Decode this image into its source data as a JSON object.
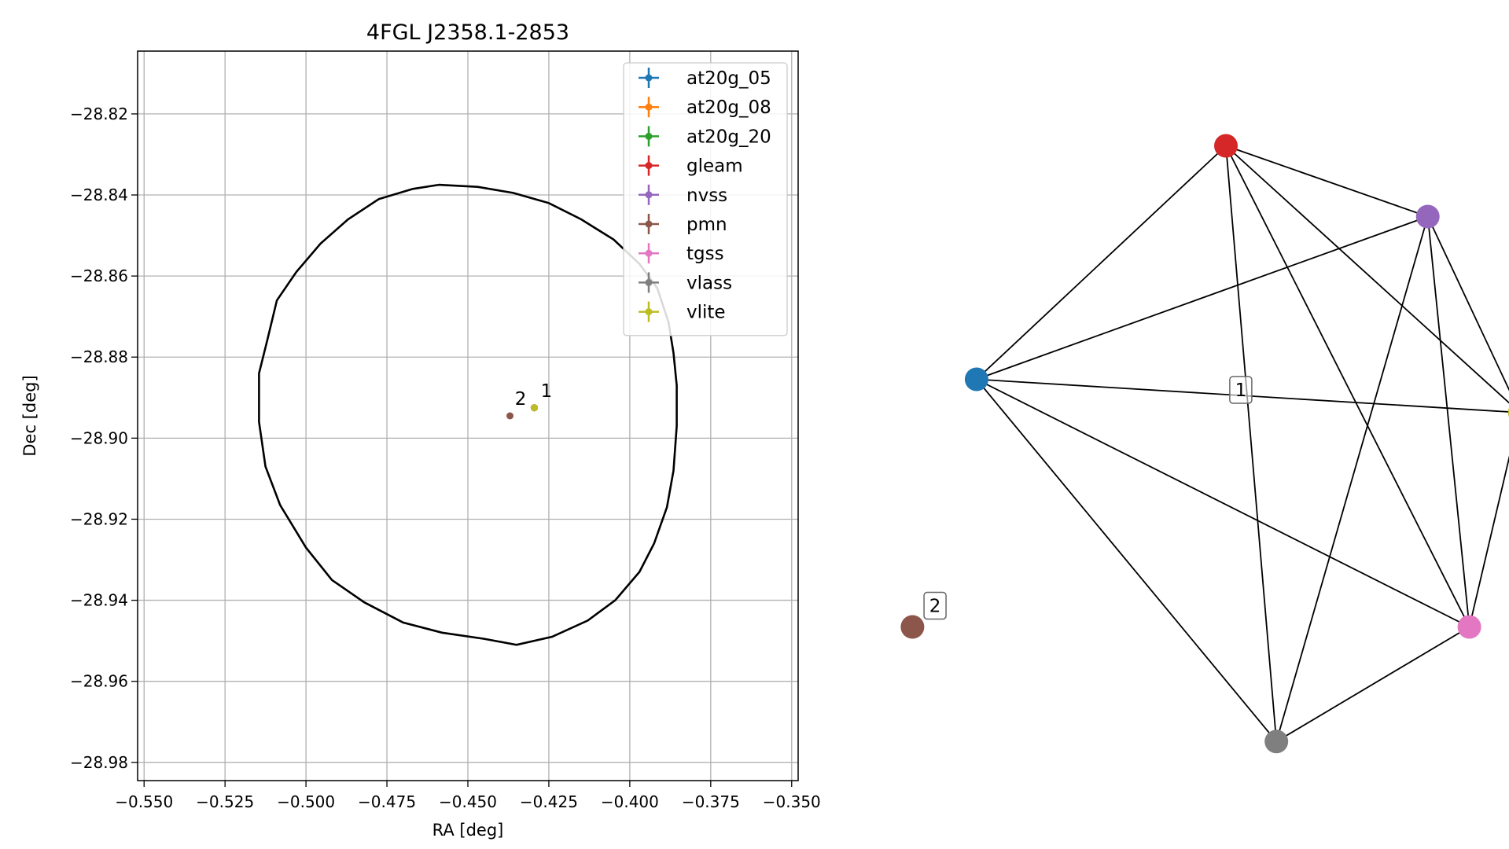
{
  "chart_data": [
    {
      "type": "scatter",
      "title": "4FGL J2358.1-2853",
      "xlabel": "RA [deg]",
      "ylabel": "Dec [deg]",
      "xlim": [
        -0.552,
        -0.348
      ],
      "ylim": [
        -28.9845,
        -28.8045
      ],
      "xticks": [
        -0.55,
        -0.525,
        -0.5,
        -0.475,
        -0.45,
        -0.425,
        -0.4,
        -0.375,
        -0.35
      ],
      "xtick_labels": [
        "−0.550",
        "−0.525",
        "−0.500",
        "−0.475",
        "−0.450",
        "−0.425",
        "−0.400",
        "−0.375",
        "−0.350"
      ],
      "yticks": [
        -28.82,
        -28.84,
        -28.86,
        -28.88,
        -28.9,
        -28.92,
        -28.94,
        -28.96,
        -28.98
      ],
      "ytick_labels": [
        "−28.82",
        "−28.84",
        "−28.86",
        "−28.88",
        "−28.90",
        "−28.92",
        "−28.94",
        "−28.96",
        "−28.98"
      ],
      "grid": true,
      "legend_position": "top-right",
      "ellipse": {
        "points": [
          [
            -0.459,
            -28.8375
          ],
          [
            -0.447,
            -28.838
          ],
          [
            -0.436,
            -28.8395
          ],
          [
            -0.425,
            -28.842
          ],
          [
            -0.415,
            -28.846
          ],
          [
            -0.405,
            -28.851
          ],
          [
            -0.397,
            -28.857
          ],
          [
            -0.3915,
            -28.863
          ],
          [
            -0.388,
            -28.8715
          ],
          [
            -0.3865,
            -28.879
          ],
          [
            -0.3855,
            -28.887
          ],
          [
            -0.3855,
            -28.897
          ],
          [
            -0.3865,
            -28.908
          ],
          [
            -0.3885,
            -28.917
          ],
          [
            -0.3925,
            -28.926
          ],
          [
            -0.397,
            -28.933
          ],
          [
            -0.4045,
            -28.94
          ],
          [
            -0.413,
            -28.945
          ],
          [
            -0.424,
            -28.949
          ],
          [
            -0.435,
            -28.951
          ],
          [
            -0.445,
            -28.9495
          ],
          [
            -0.458,
            -28.948
          ],
          [
            -0.47,
            -28.9455
          ],
          [
            -0.482,
            -28.9405
          ],
          [
            -0.492,
            -28.935
          ],
          [
            -0.5,
            -28.927
          ],
          [
            -0.508,
            -28.9165
          ],
          [
            -0.5125,
            -28.907
          ],
          [
            -0.5145,
            -28.896
          ],
          [
            -0.5145,
            -28.884
          ],
          [
            -0.512,
            -28.876
          ],
          [
            -0.509,
            -28.866
          ],
          [
            -0.503,
            -28.859
          ],
          [
            -0.4955,
            -28.852
          ],
          [
            -0.487,
            -28.846
          ],
          [
            -0.4775,
            -28.841
          ],
          [
            -0.467,
            -28.8385
          ],
          [
            -0.459,
            -28.8375
          ]
        ]
      },
      "series": [
        {
          "name": "at20g_05",
          "color": "#1f77b4",
          "x": [
            -0.4295
          ],
          "y": [
            -28.8925
          ]
        },
        {
          "name": "at20g_08",
          "color": "#ff7f0e",
          "x": [
            -0.4295
          ],
          "y": [
            -28.8925
          ]
        },
        {
          "name": "at20g_20",
          "color": "#2ca02c",
          "x": [
            -0.4295
          ],
          "y": [
            -28.8925
          ]
        },
        {
          "name": "gleam",
          "color": "#d62728",
          "x": [
            -0.4295
          ],
          "y": [
            -28.8925
          ]
        },
        {
          "name": "nvss",
          "color": "#9467bd",
          "x": [
            -0.4295
          ],
          "y": [
            -28.8925
          ]
        },
        {
          "name": "pmn",
          "color": "#8c564b",
          "x": [
            -0.437
          ],
          "y": [
            -28.8945
          ]
        },
        {
          "name": "tgss",
          "color": "#e377c2",
          "x": [
            -0.4295
          ],
          "y": [
            -28.8925
          ]
        },
        {
          "name": "vlass",
          "color": "#7f7f7f",
          "x": [
            -0.4295
          ],
          "y": [
            -28.8925
          ]
        },
        {
          "name": "vlite",
          "color": "#bcbd22",
          "x": [
            -0.4295
          ],
          "y": [
            -28.8925
          ]
        }
      ],
      "annotations": [
        {
          "text": "1",
          "x": -0.4275,
          "y": -28.8898
        },
        {
          "text": "2",
          "x": -0.4355,
          "y": -28.8918
        }
      ]
    },
    {
      "type": "network",
      "nodes": [
        {
          "id": "at20g_05",
          "color": "#1f77b4",
          "x": 0.135,
          "y": 0.575
        },
        {
          "id": "gleam",
          "color": "#d62728",
          "x": 0.555,
          "y": 0.905
        },
        {
          "id": "nvss",
          "color": "#9467bd",
          "x": 0.895,
          "y": 0.805
        },
        {
          "id": "vlite",
          "color": "#bcbd22",
          "x": 1.05,
          "y": 0.528
        },
        {
          "id": "tgss",
          "color": "#e377c2",
          "x": 0.965,
          "y": 0.225
        },
        {
          "id": "vlass",
          "color": "#7f7f7f",
          "x": 0.64,
          "y": 0.063
        },
        {
          "id": "pmn",
          "color": "#8c564b",
          "x": 0.027,
          "y": 0.225
        }
      ],
      "edges": [
        [
          "at20g_05",
          "gleam"
        ],
        [
          "at20g_05",
          "nvss"
        ],
        [
          "at20g_05",
          "vlite"
        ],
        [
          "at20g_05",
          "tgss"
        ],
        [
          "at20g_05",
          "vlass"
        ],
        [
          "gleam",
          "nvss"
        ],
        [
          "gleam",
          "vlite"
        ],
        [
          "gleam",
          "tgss"
        ],
        [
          "gleam",
          "vlass"
        ],
        [
          "nvss",
          "vlite"
        ],
        [
          "nvss",
          "tgss"
        ],
        [
          "nvss",
          "vlass"
        ],
        [
          "vlite",
          "tgss"
        ],
        [
          "tgss",
          "vlass"
        ]
      ],
      "labels": [
        {
          "text": "1",
          "x": 0.58,
          "y": 0.56
        },
        {
          "text": "2",
          "x": 0.065,
          "y": 0.255
        }
      ]
    }
  ]
}
